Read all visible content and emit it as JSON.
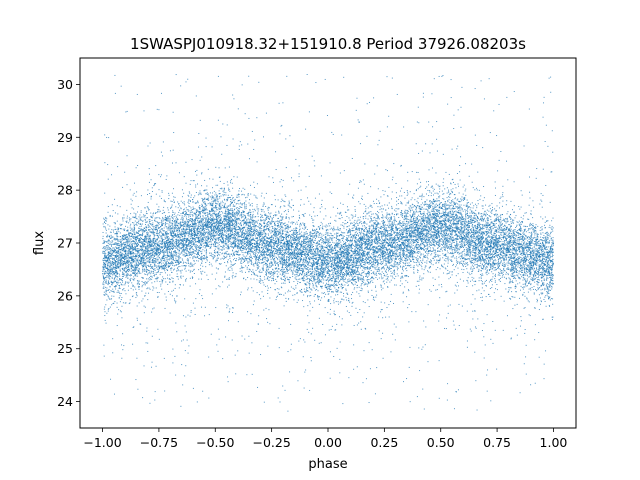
{
  "chart_data": {
    "type": "scatter",
    "title": "1SWASPJ010918.32+151910.8 Period 37926.08203s",
    "xlabel": "phase",
    "ylabel": "flux",
    "xlim": [
      -1.1,
      1.1
    ],
    "ylim": [
      23.5,
      30.5
    ],
    "xticks": [
      -1.0,
      -0.75,
      -0.5,
      -0.25,
      0.0,
      0.25,
      0.5,
      0.75,
      1.0
    ],
    "xtick_labels": [
      "−1.00",
      "−0.75",
      "−0.50",
      "−0.25",
      "0.00",
      "0.25",
      "0.50",
      "0.75",
      "1.00"
    ],
    "yticks": [
      24,
      25,
      26,
      27,
      28,
      29,
      30
    ],
    "ytick_labels": [
      "24",
      "25",
      "26",
      "27",
      "28",
      "29",
      "30"
    ],
    "grid": false,
    "marker_color": "#1f77b4",
    "series": [
      {
        "phase_range": [
          -1.0,
          1.0
        ],
        "flux_clip": [
          23.8,
          30.2
        ],
        "trend_points": [
          {
            "x": -1.0,
            "y": 26.65
          },
          {
            "x": -0.75,
            "y": 26.95
          },
          {
            "x": -0.5,
            "y": 27.3
          },
          {
            "x": -0.25,
            "y": 26.95
          },
          {
            "x": 0.0,
            "y": 26.65
          },
          {
            "x": 0.25,
            "y": 26.95
          },
          {
            "x": 0.5,
            "y": 27.3
          },
          {
            "x": 0.75,
            "y": 26.95
          },
          {
            "x": 1.0,
            "y": 26.65
          }
        ],
        "core_spread": 0.55
      }
    ]
  }
}
